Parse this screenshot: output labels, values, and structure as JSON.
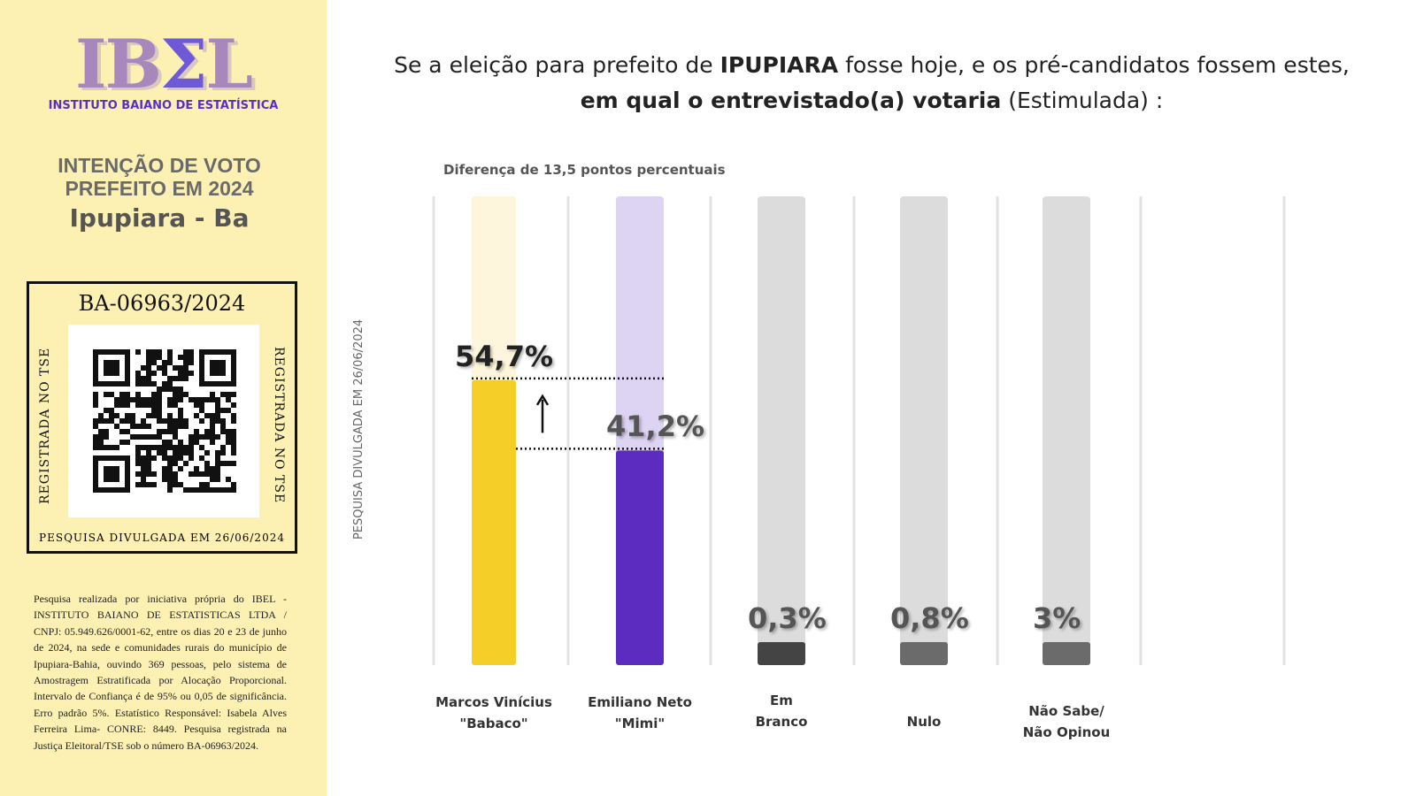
{
  "sidebar": {
    "logo_text": "IBEL",
    "logo_sigma": "Σ",
    "institute": "INSTITUTO BAIANO DE ESTATÍSTICA",
    "heading_line1": "INTENÇÃO DE VOTO",
    "heading_line2": "PREFEITO EM 2024",
    "city": "Ipupiara - Ba",
    "registration": "BA-06963/2024",
    "side_text": "REGISTRADA NO TSE",
    "box_date": "PESQUISA DIVULGADA EM 26/06/2024",
    "legal": "Pesquisa realizada por iniciativa própria  do IBEL - INSTITUTO BAIANO DE ESTATISTICAS LTDA / CNPJ: 05.949.626/0001-62, entre os dias 20 e 23 de junho de 2024, na sede e comunidades rurais do município de Ipupiara-Bahia, ouvindo 369 pessoas, pelo sistema de Amostragem Estratificada por Alocação Proporcional. Intervalo de Confiança é de 95% ou 0,05 de significância. Erro padrão 5%. Estatístico Responsável: Isabela Alves Ferreira Lima- CONRE: 8449. Pesquisa registrada na Justiça Eleitoral/TSE sob o número BA-06963/2024."
  },
  "header": {
    "q_part1": "Se a eleição para prefeito de ",
    "q_city": "IPUPIARA",
    "q_part2": " fosse hoje, e os pré-candidatos fossem estes, ",
    "q_bold": "em qual o entrevistado(a) votaria",
    "q_part3": " (Estimulada) :"
  },
  "vertical_note": "PESQUISA DIVULGADA EM 26/06/2024",
  "chart_data": {
    "type": "bar",
    "subtitle": "Diferença de 13,5 pontos percentuais",
    "categories": [
      "Marcos Vinícius \"Babaco\"",
      "Emiliano Neto \"Mimi\"",
      "Em Branco",
      "Nulo",
      "Não Sabe/ Não Opinou"
    ],
    "category_lines": [
      [
        "Marcos Vinícius",
        "\"Babaco\""
      ],
      [
        "Emiliano Neto",
        "\"Mimi\""
      ],
      [
        "Em",
        "Branco"
      ],
      [
        "Nulo"
      ],
      [
        "Não Sabe/",
        "Não Opinou"
      ]
    ],
    "values": [
      54.7,
      41.2,
      0.3,
      0.8,
      3
    ],
    "value_labels": [
      "54,7%",
      "41,2%",
      "0,3%",
      "0,8%",
      "3%"
    ],
    "colors": [
      "#f5cf28",
      "#5c2bc0",
      "#444444",
      "#6b6b6b",
      "#6b6b6b"
    ],
    "track_colors": [
      "#fdf6dc",
      "#ddd3f2",
      "#dcdcdc",
      "#dcdcdc",
      "#dcdcdc"
    ],
    "label_colors": [
      "#222222",
      "#555555",
      "#555555",
      "#555555",
      "#555555"
    ],
    "grid": true
  }
}
